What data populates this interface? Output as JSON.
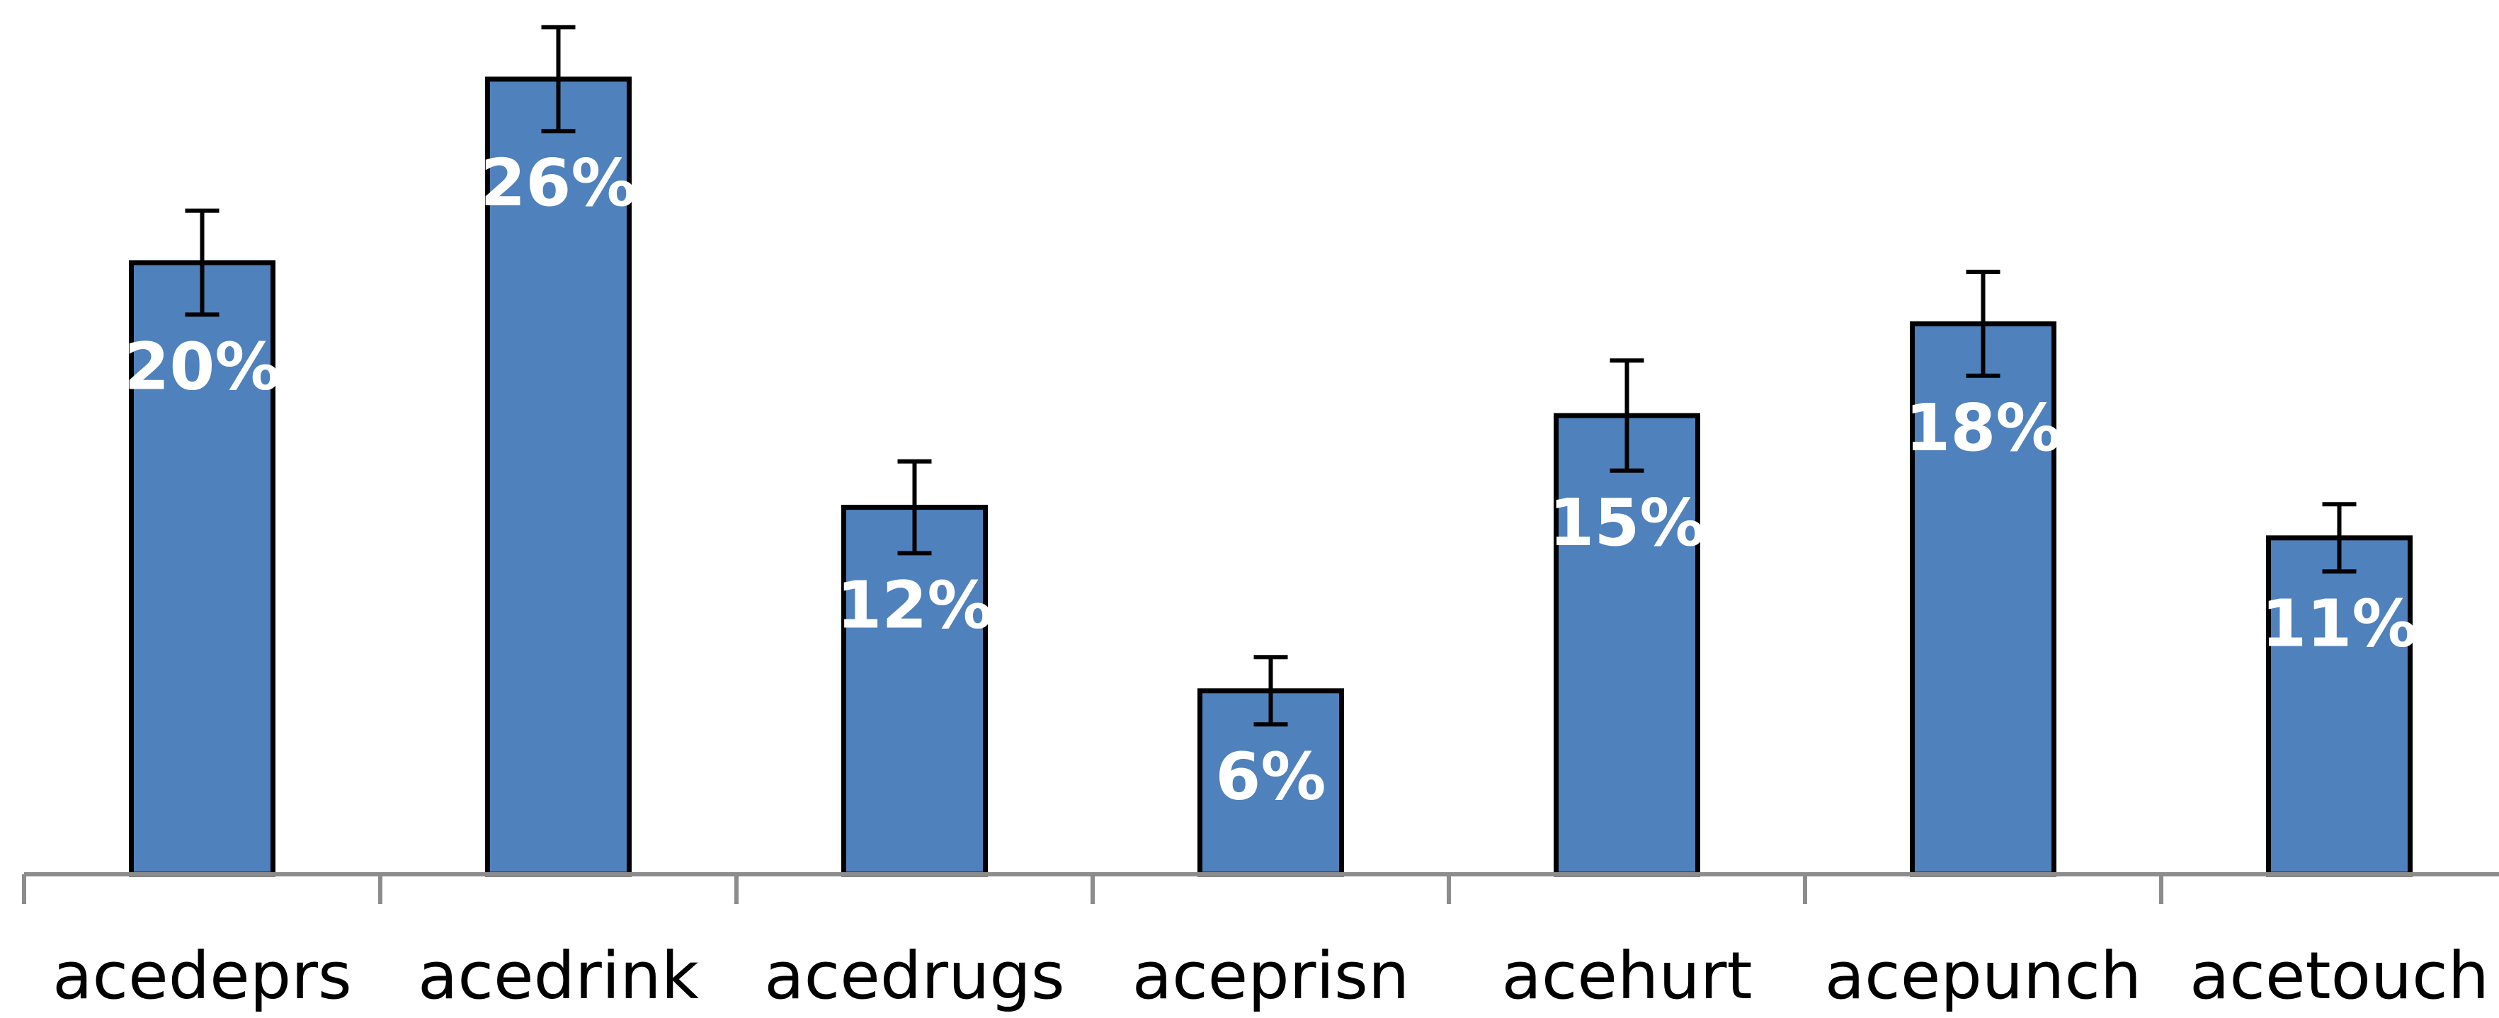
{
  "chart_data": {
    "type": "bar",
    "title": "",
    "xlabel": "",
    "ylabel": "",
    "ylim": [
      0,
      29
    ],
    "grid": false,
    "legend": "none",
    "categories": [
      "acedeprs",
      "acedrink",
      "acedrugs",
      "aceprisn",
      "acehurt",
      "acepunch",
      "acetouch"
    ],
    "series": [
      {
        "values": [
          20,
          26,
          12,
          6,
          15,
          18,
          11
        ],
        "error": [
          1.7,
          1.7,
          1.5,
          1.1,
          1.8,
          1.7,
          1.1
        ],
        "labels": [
          "20%",
          "26%",
          "12%",
          "6%",
          "15%",
          "18%",
          "11%"
        ],
        "color": "#4F81BD"
      }
    ]
  }
}
